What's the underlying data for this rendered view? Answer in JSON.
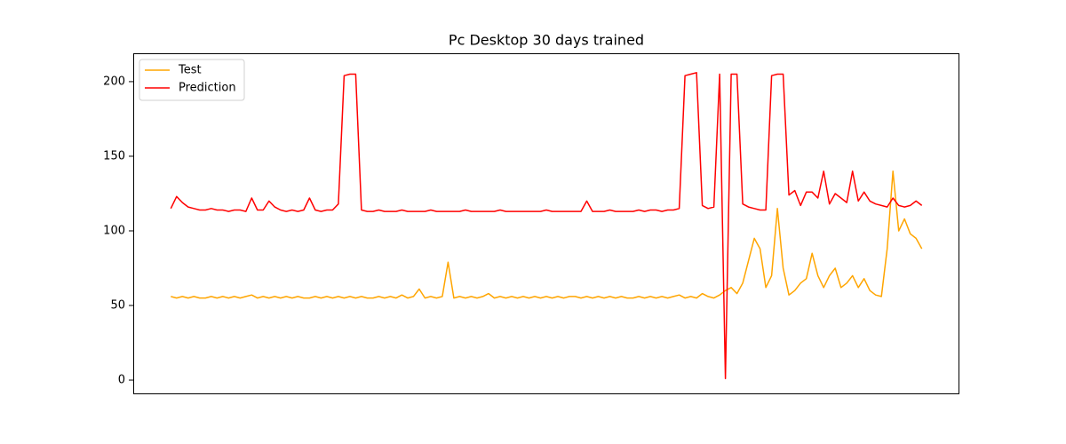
{
  "chart_data": {
    "type": "line",
    "title": "Pc Desktop 30 days trained",
    "ylim": [
      -9.5,
      219
    ],
    "yticks": [
      0,
      50,
      100,
      150,
      200
    ],
    "legend": "upper left",
    "series": [
      {
        "name": "Test",
        "color": "#ffa500",
        "values": [
          56,
          55,
          56,
          55,
          56,
          55,
          55,
          56,
          55,
          56,
          55,
          56,
          55,
          56,
          57,
          55,
          56,
          55,
          56,
          55,
          56,
          55,
          56,
          55,
          55,
          56,
          55,
          56,
          55,
          56,
          55,
          56,
          55,
          56,
          55,
          55,
          56,
          55,
          56,
          55,
          57,
          55,
          56,
          61,
          55,
          56,
          55,
          56,
          79,
          55,
          56,
          55,
          56,
          55,
          56,
          58,
          55,
          56,
          55,
          56,
          55,
          56,
          55,
          56,
          55,
          56,
          55,
          56,
          55,
          56,
          56,
          55,
          56,
          55,
          56,
          55,
          56,
          55,
          56,
          55,
          55,
          56,
          55,
          56,
          55,
          56,
          55,
          56,
          57,
          55,
          56,
          55,
          58,
          56,
          55,
          57,
          60,
          62,
          58,
          65,
          80,
          95,
          88,
          62,
          70,
          115,
          75,
          57,
          60,
          65,
          68,
          85,
          70,
          62,
          70,
          75,
          62,
          65,
          70,
          62,
          68,
          60,
          57,
          56,
          88,
          140,
          100,
          108,
          98,
          95,
          88
        ]
      },
      {
        "name": "Prediction",
        "color": "#ff0000",
        "values": [
          115,
          123,
          119,
          116,
          115,
          114,
          114,
          115,
          114,
          114,
          113,
          114,
          114,
          113,
          122,
          114,
          114,
          120,
          116,
          114,
          113,
          114,
          113,
          114,
          122,
          114,
          113,
          114,
          114,
          118,
          204,
          205,
          205,
          114,
          113,
          113,
          114,
          113,
          113,
          113,
          114,
          113,
          113,
          113,
          113,
          114,
          113,
          113,
          113,
          113,
          113,
          114,
          113,
          113,
          113,
          113,
          113,
          114,
          113,
          113,
          113,
          113,
          113,
          113,
          113,
          114,
          113,
          113,
          113,
          113,
          113,
          113,
          120,
          113,
          113,
          113,
          114,
          113,
          113,
          113,
          113,
          114,
          113,
          114,
          114,
          113,
          114,
          114,
          115,
          204,
          205,
          206,
          117,
          115,
          116,
          205,
          1,
          205,
          205,
          118,
          116,
          115,
          114,
          114,
          204,
          205,
          205,
          124,
          127,
          117,
          126,
          126,
          122,
          140,
          118,
          125,
          122,
          119,
          140,
          120,
          126,
          120,
          118,
          117,
          116,
          122,
          117,
          116,
          117,
          120,
          117
        ]
      }
    ]
  }
}
